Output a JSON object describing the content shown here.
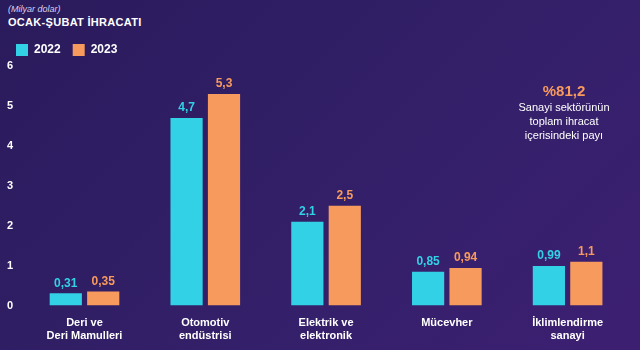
{
  "chart_data": {
    "type": "bar",
    "title": "OCAK-ŞUBAT İHRACATI",
    "subtitle": "(Milyar dolar)",
    "categories": [
      [
        "Deri ve",
        "Deri Mamulleri"
      ],
      [
        "Otomotiv",
        "endüstrisi"
      ],
      [
        "Elektrik ve",
        "elektronik"
      ],
      [
        "Mücevher"
      ],
      [
        "İklimlendirme",
        "sanayi"
      ]
    ],
    "series": [
      {
        "name": "2022",
        "color": "#33d1e6",
        "values": [
          0.31,
          4.7,
          2.1,
          0.85,
          0.99
        ],
        "value_labels": [
          "0,31",
          "4,7",
          "2,1",
          "0,85",
          "0,99"
        ]
      },
      {
        "name": "2023",
        "color": "#f79a5e",
        "values": [
          0.35,
          5.3,
          2.5,
          0.94,
          1.1
        ],
        "value_labels": [
          "0,35",
          "5,3",
          "2,5",
          "0,94",
          "1,1"
        ]
      }
    ],
    "ylim": [
      0,
      6
    ],
    "yticks": [
      0,
      1,
      2,
      3,
      4,
      5,
      6
    ],
    "grid": false,
    "legend": "top-left",
    "data_labels": true,
    "annotations": [
      {
        "text": "%81,2"
      },
      {
        "text": "Sanayi sektörünün toplam ihracat içerisindeki payı"
      }
    ]
  }
}
